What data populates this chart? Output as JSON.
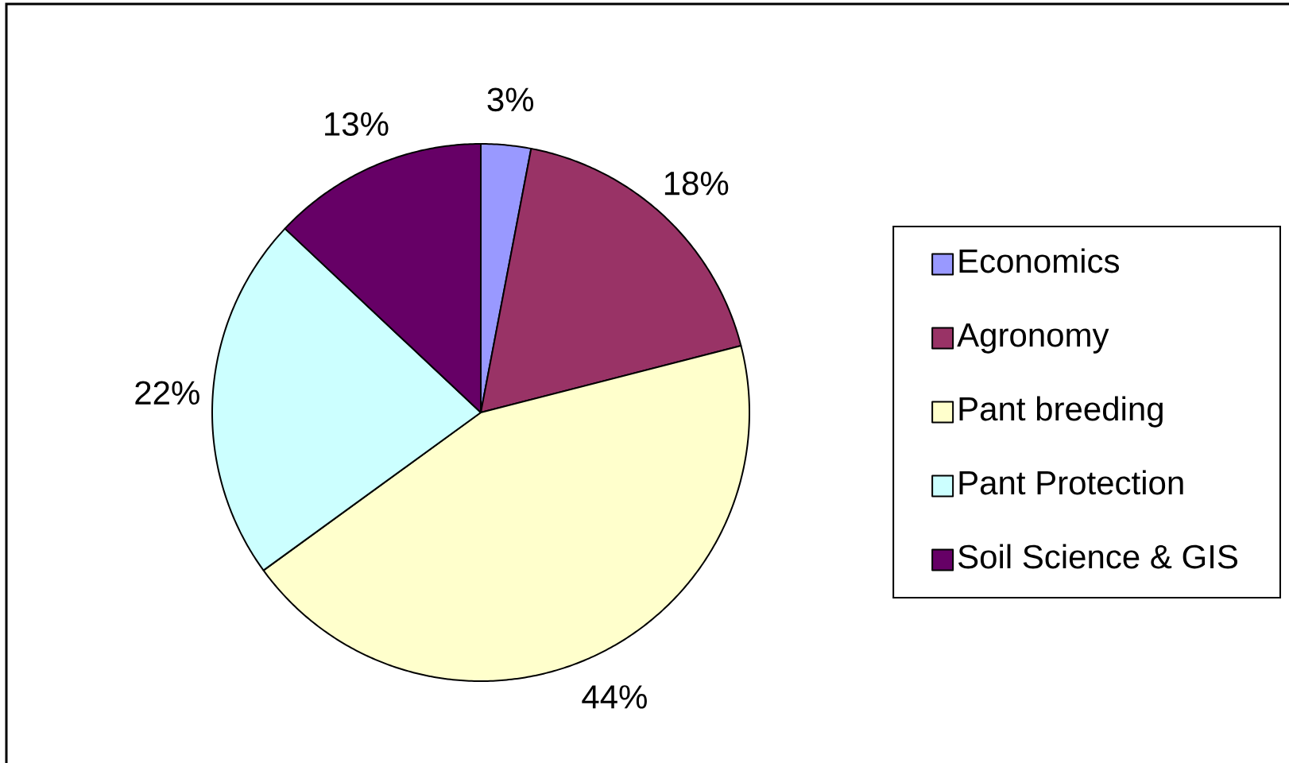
{
  "chart_data": {
    "type": "pie",
    "categories": [
      "Economics",
      "Agronomy",
      "Pant breeding",
      "Pant Protection",
      "Soil Science & GIS"
    ],
    "values": [
      3,
      18,
      44,
      22,
      13
    ],
    "colors": [
      "#9999ff",
      "#993366",
      "#ffffcc",
      "#ccffff",
      "#660066"
    ],
    "value_labels": [
      "3%",
      "18%",
      "44%",
      "22%",
      "13%"
    ],
    "legend": "right"
  }
}
